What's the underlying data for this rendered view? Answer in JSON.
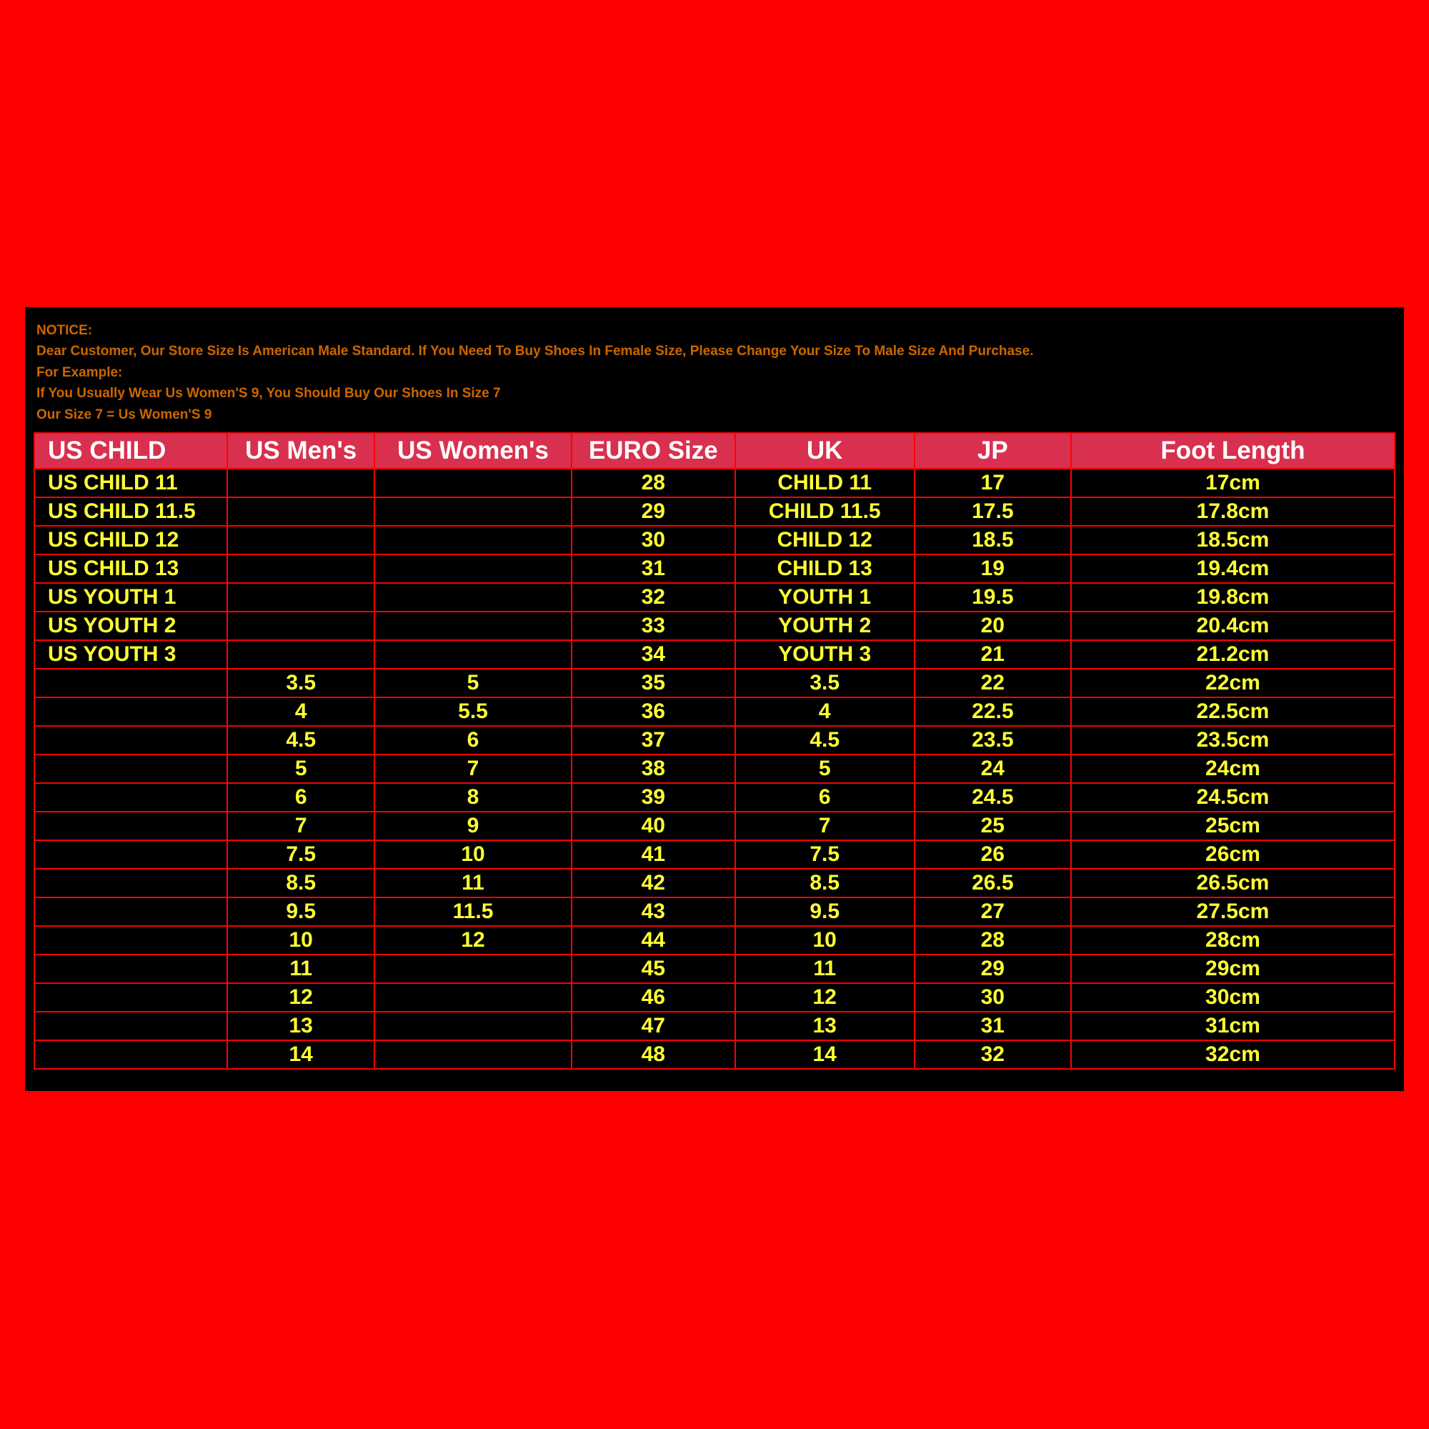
{
  "notice": {
    "line1": "NOTICE:",
    "line2": "Dear Customer, Our Store Size Is American Male Standard. If You Need To Buy Shoes In Female Size, Please Change Your Size To Male Size And Purchase.",
    "line3": "For Example:",
    "line4": "If You Usually Wear Us Women'S 9, You Should Buy Our Shoes In Size 7",
    "line5": "Our Size 7 = Us Women'S 9"
  },
  "columns": [
    "US CHILD",
    "US Men's",
    "US Women's",
    "EURO Size",
    "UK",
    "JP",
    "Foot Length"
  ],
  "rows": [
    [
      "US CHILD 11",
      "",
      "",
      "28",
      "CHILD 11",
      "17",
      "17cm"
    ],
    [
      "US CHILD 11.5",
      "",
      "",
      "29",
      "CHILD 11.5",
      "17.5",
      "17.8cm"
    ],
    [
      "US CHILD 12",
      "",
      "",
      "30",
      "CHILD 12",
      "18.5",
      "18.5cm"
    ],
    [
      "US CHILD 13",
      "",
      "",
      "31",
      "CHILD 13",
      "19",
      "19.4cm"
    ],
    [
      "US YOUTH 1",
      "",
      "",
      "32",
      "YOUTH 1",
      "19.5",
      "19.8cm"
    ],
    [
      "US YOUTH 2",
      "",
      "",
      "33",
      "YOUTH 2",
      "20",
      "20.4cm"
    ],
    [
      "US YOUTH 3",
      "",
      "",
      "34",
      "YOUTH 3",
      "21",
      "21.2cm"
    ],
    [
      "",
      "3.5",
      "5",
      "35",
      "3.5",
      "22",
      "22cm"
    ],
    [
      "",
      "4",
      "5.5",
      "36",
      "4",
      "22.5",
      "22.5cm"
    ],
    [
      "",
      "4.5",
      "6",
      "37",
      "4.5",
      "23.5",
      "23.5cm"
    ],
    [
      "",
      "5",
      "7",
      "38",
      "5",
      "24",
      "24cm"
    ],
    [
      "",
      "6",
      "8",
      "39",
      "6",
      "24.5",
      "24.5cm"
    ],
    [
      "",
      "7",
      "9",
      "40",
      "7",
      "25",
      "25cm"
    ],
    [
      "",
      "7.5",
      "10",
      "41",
      "7.5",
      "26",
      "26cm"
    ],
    [
      "",
      "8.5",
      "11",
      "42",
      "8.5",
      "26.5",
      "26.5cm"
    ],
    [
      "",
      "9.5",
      "11.5",
      "43",
      "9.5",
      "27",
      "27.5cm"
    ],
    [
      "",
      "10",
      "12",
      "44",
      "10",
      "28",
      "28cm"
    ],
    [
      "",
      "11",
      "",
      "45",
      "11",
      "29",
      "29cm"
    ],
    [
      "",
      "12",
      "",
      "46",
      "12",
      "30",
      "30cm"
    ],
    [
      "",
      "13",
      "",
      "47",
      "13",
      "31",
      "31cm"
    ],
    [
      "",
      "14",
      "",
      "48",
      "14",
      "32",
      "32cm"
    ]
  ],
  "style": {
    "page_bg": "#ff0000",
    "panel_bg": "#000000",
    "notice_color": "#cc6600",
    "header_bg": "#d93050",
    "header_text": "#ffffff",
    "cell_text": "#ffff33",
    "border_color": "#ff0000",
    "header_fontsize": 35,
    "cell_fontsize": 30,
    "notice_fontsize": 19
  }
}
